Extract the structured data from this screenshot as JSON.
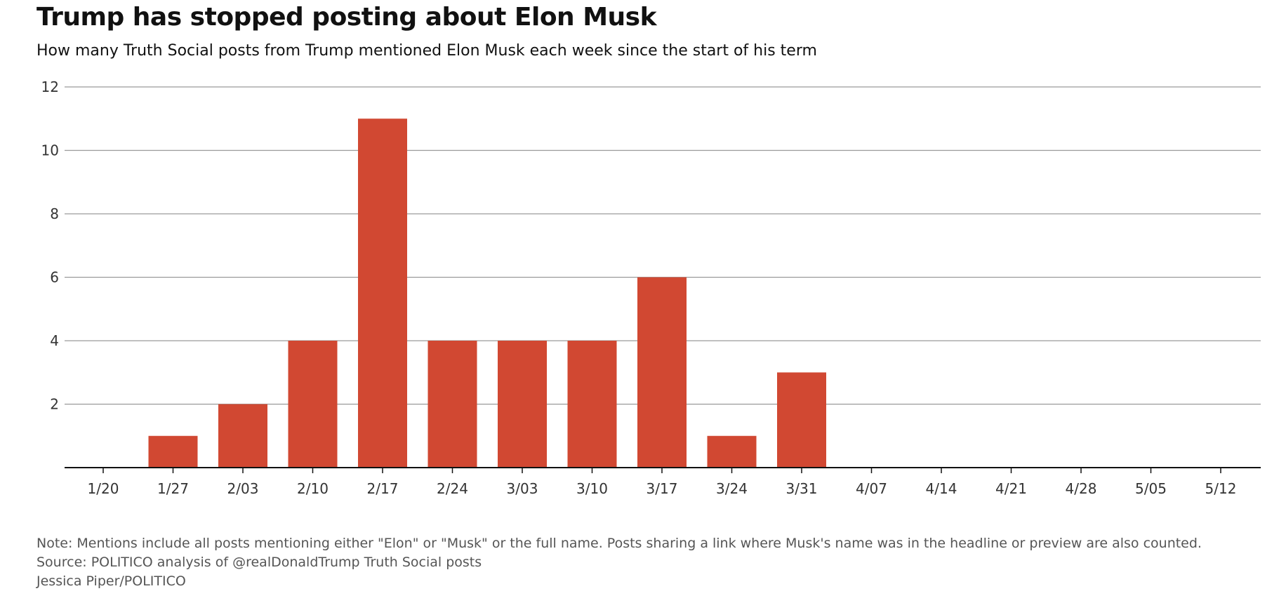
{
  "chart_data": {
    "type": "bar",
    "title": "Trump has stopped posting about Elon Musk",
    "subtitle": "How many Truth Social posts from Trump mentioned Elon Musk each week since the start of his term",
    "categories": [
      "1/20",
      "1/27",
      "2/03",
      "2/10",
      "2/17",
      "2/24",
      "3/03",
      "3/10",
      "3/17",
      "3/24",
      "3/31",
      "4/07",
      "4/14",
      "4/21",
      "4/28",
      "5/05",
      "5/12"
    ],
    "values": [
      0,
      1,
      2,
      4,
      11,
      4,
      4,
      4,
      6,
      1,
      3,
      0,
      0,
      0,
      0,
      0,
      0
    ],
    "xlabel": "",
    "ylabel": "",
    "ylim": [
      0,
      12
    ],
    "yticks": [
      2,
      4,
      6,
      8,
      10,
      12
    ],
    "grid": true,
    "bar_color": "#d14832"
  },
  "footer": {
    "note": "Note: Mentions include all posts mentioning either \"Elon\" or \"Musk\" or the full name. Posts sharing a link where Musk's name was in the headline or preview are also counted.",
    "source": "Source: POLITICO analysis of @realDonaldTrump Truth Social posts",
    "credit": "Jessica Piper/POLITICO"
  }
}
